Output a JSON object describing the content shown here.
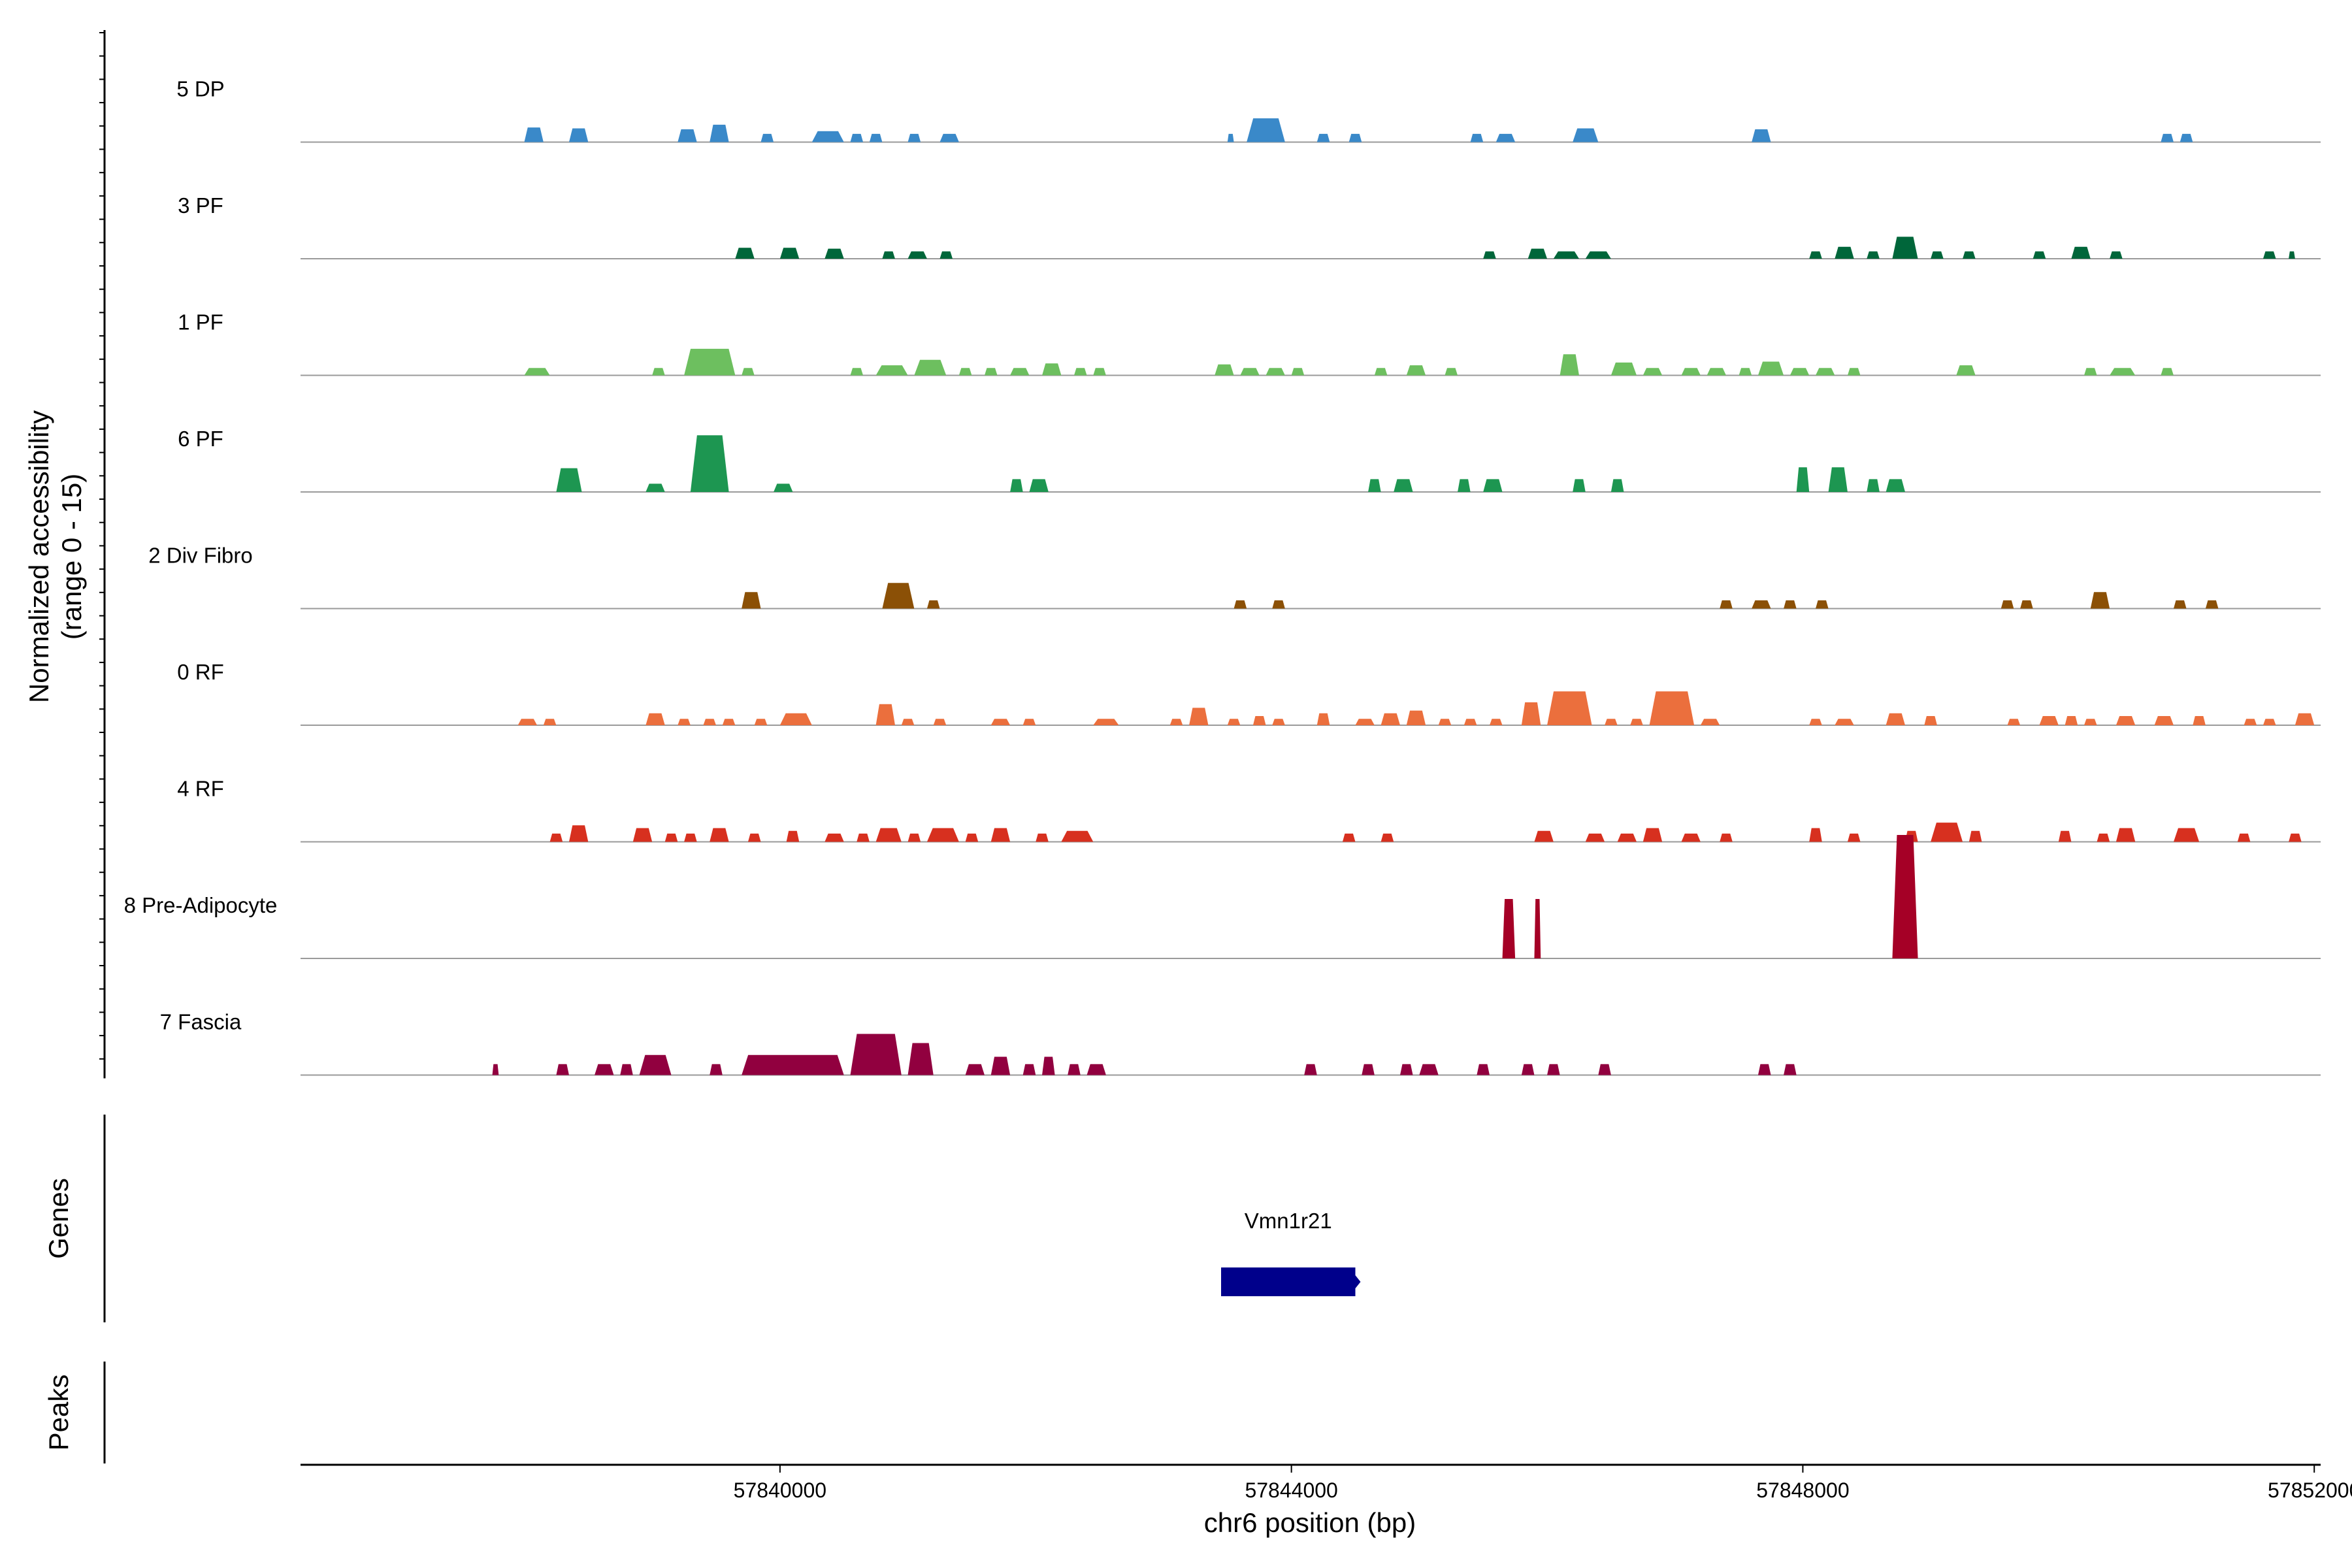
{
  "chart_data": {
    "type": "area",
    "title": "",
    "ylabel_main": [
      "Normalized accessibility",
      "(range 0 - 15)"
    ],
    "xlabel": "chr6 position (bp)",
    "xlim": [
      57836250,
      57852050
    ],
    "ylim": [
      0,
      15
    ],
    "x_ticks": [
      57840000,
      57844000,
      57848000,
      57852000
    ],
    "x_tick_labels": [
      "57840000",
      "57844000",
      "57848000",
      "57852000"
    ],
    "tracks": [
      {
        "name": "5 DP",
        "color": "#3A89C9",
        "peaks": [
          [
            57838000,
            57838150,
            1.6
          ],
          [
            57838350,
            57838500,
            1.5
          ],
          [
            57839200,
            57839350,
            1.4
          ],
          [
            57839450,
            57839600,
            1.9
          ],
          [
            57839850,
            57839950,
            0.9
          ],
          [
            57840250,
            57840500,
            1.2
          ],
          [
            57840550,
            57840650,
            0.9
          ],
          [
            57840700,
            57840800,
            0.9
          ],
          [
            57841000,
            57841100,
            0.9
          ],
          [
            57841250,
            57841400,
            0.9
          ],
          [
            57843500,
            57843550,
            0.9
          ],
          [
            57843650,
            57843950,
            2.6
          ],
          [
            57844200,
            57844300,
            0.9
          ],
          [
            57844450,
            57844550,
            0.9
          ],
          [
            57845400,
            57845500,
            0.9
          ],
          [
            57845600,
            57845750,
            0.9
          ],
          [
            57846200,
            57846400,
            1.5
          ],
          [
            57847600,
            57847750,
            1.4
          ],
          [
            57850800,
            57850900,
            0.9
          ],
          [
            57850950,
            57851050,
            0.9
          ]
        ]
      },
      {
        "name": "3 PF",
        "color": "#00663A",
        "peaks": [
          [
            57839650,
            57839800,
            1.2
          ],
          [
            57840000,
            57840150,
            1.2
          ],
          [
            57840350,
            57840500,
            1.1
          ],
          [
            57840800,
            57840900,
            0.8
          ],
          [
            57841000,
            57841150,
            0.8
          ],
          [
            57841250,
            57841350,
            0.8
          ],
          [
            57845500,
            57845600,
            0.8
          ],
          [
            57845850,
            57846000,
            1.1
          ],
          [
            57846050,
            57846250,
            0.8
          ],
          [
            57846300,
            57846500,
            0.8
          ],
          [
            57848050,
            57848150,
            0.8
          ],
          [
            57848250,
            57848400,
            1.3
          ],
          [
            57848500,
            57848600,
            0.8
          ],
          [
            57848700,
            57848900,
            2.4
          ],
          [
            57849000,
            57849100,
            0.8
          ],
          [
            57849250,
            57849350,
            0.8
          ],
          [
            57849800,
            57849900,
            0.8
          ],
          [
            57850100,
            57850250,
            1.3
          ],
          [
            57850400,
            57850500,
            0.8
          ],
          [
            57851600,
            57851700,
            0.8
          ],
          [
            57851800,
            57851850,
            0.8
          ]
        ]
      },
      {
        "name": "1 PF",
        "color": "#6DBF5F",
        "peaks": [
          [
            57838000,
            57838200,
            0.8
          ],
          [
            57839000,
            57839100,
            0.8
          ],
          [
            57839250,
            57839650,
            2.9
          ],
          [
            57839700,
            57839800,
            0.8
          ],
          [
            57840550,
            57840650,
            0.8
          ],
          [
            57840750,
            57841000,
            1.1
          ],
          [
            57841050,
            57841300,
            1.7
          ],
          [
            57841400,
            57841500,
            0.8
          ],
          [
            57841600,
            57841700,
            0.8
          ],
          [
            57841800,
            57841950,
            0.8
          ],
          [
            57842050,
            57842200,
            1.3
          ],
          [
            57842300,
            57842400,
            0.8
          ],
          [
            57842450,
            57842550,
            0.8
          ],
          [
            57843400,
            57843550,
            1.2
          ],
          [
            57843600,
            57843750,
            0.8
          ],
          [
            57843800,
            57843950,
            0.8
          ],
          [
            57844000,
            57844100,
            0.8
          ],
          [
            57844650,
            57844750,
            0.8
          ],
          [
            57844900,
            57845050,
            1.1
          ],
          [
            57845200,
            57845300,
            0.8
          ],
          [
            57846100,
            57846250,
            2.3
          ],
          [
            57846500,
            57846700,
            1.4
          ],
          [
            57846750,
            57846900,
            0.8
          ],
          [
            57847050,
            57847200,
            0.8
          ],
          [
            57847250,
            57847400,
            0.8
          ],
          [
            57847500,
            57847600,
            0.8
          ],
          [
            57847650,
            57847850,
            1.5
          ],
          [
            57847900,
            57848050,
            0.8
          ],
          [
            57848100,
            57848250,
            0.8
          ],
          [
            57848350,
            57848450,
            0.8
          ],
          [
            57849200,
            57849350,
            1.1
          ],
          [
            57850200,
            57850300,
            0.8
          ],
          [
            57850400,
            57850600,
            0.8
          ],
          [
            57850800,
            57850900,
            0.8
          ]
        ]
      },
      {
        "name": "6 PF",
        "color": "#1D9651",
        "peaks": [
          [
            57838250,
            57838450,
            2.6
          ],
          [
            57838950,
            57839100,
            0.9
          ],
          [
            57839300,
            57839600,
            6.2
          ],
          [
            57839950,
            57840100,
            0.9
          ],
          [
            57841800,
            57841900,
            1.4
          ],
          [
            57841950,
            57842100,
            1.4
          ],
          [
            57844600,
            57844700,
            1.4
          ],
          [
            57844800,
            57844950,
            1.4
          ],
          [
            57845300,
            57845400,
            1.4
          ],
          [
            57845500,
            57845650,
            1.4
          ],
          [
            57846200,
            57846300,
            1.4
          ],
          [
            57846500,
            57846600,
            1.4
          ],
          [
            57847950,
            57848050,
            2.7
          ],
          [
            57848200,
            57848350,
            2.7
          ],
          [
            57848500,
            57848600,
            1.4
          ],
          [
            57848650,
            57848800,
            1.4
          ]
        ]
      },
      {
        "name": "2 Div Fibro",
        "color": "#8B5006",
        "peaks": [
          [
            57839700,
            57839850,
            1.8
          ],
          [
            57840800,
            57841050,
            2.8
          ],
          [
            57841150,
            57841250,
            0.9
          ],
          [
            57843550,
            57843650,
            0.9
          ],
          [
            57843850,
            57843950,
            0.9
          ],
          [
            57847350,
            57847450,
            0.9
          ],
          [
            57847600,
            57847750,
            0.9
          ],
          [
            57847850,
            57847950,
            0.9
          ],
          [
            57848100,
            57848200,
            0.9
          ],
          [
            57849550,
            57849650,
            0.9
          ],
          [
            57849700,
            57849800,
            0.9
          ],
          [
            57850250,
            57850400,
            1.8
          ],
          [
            57850900,
            57851000,
            0.9
          ],
          [
            57851150,
            57851250,
            0.9
          ]
        ]
      },
      {
        "name": "0 RF",
        "color": "#EB6F3D",
        "peaks": [
          [
            57837950,
            57838100,
            0.7
          ],
          [
            57838150,
            57838250,
            0.7
          ],
          [
            57838950,
            57839100,
            1.3
          ],
          [
            57839200,
            57839300,
            0.7
          ],
          [
            57839400,
            57839500,
            0.7
          ],
          [
            57839550,
            57839650,
            0.7
          ],
          [
            57839800,
            57839900,
            0.7
          ],
          [
            57840000,
            57840250,
            1.3
          ],
          [
            57840750,
            57840900,
            2.3
          ],
          [
            57840950,
            57841050,
            0.7
          ],
          [
            57841200,
            57841300,
            0.7
          ],
          [
            57841650,
            57841800,
            0.7
          ],
          [
            57841900,
            57842000,
            0.7
          ],
          [
            57842450,
            57842650,
            0.7
          ],
          [
            57843050,
            57843150,
            0.7
          ],
          [
            57843200,
            57843350,
            1.9
          ],
          [
            57843500,
            57843600,
            0.7
          ],
          [
            57843700,
            57843800,
            1.0
          ],
          [
            57843850,
            57843950,
            0.7
          ],
          [
            57844200,
            57844300,
            1.3
          ],
          [
            57844500,
            57844650,
            0.7
          ],
          [
            57844700,
            57844850,
            1.3
          ],
          [
            57844900,
            57845050,
            1.6
          ],
          [
            57845150,
            57845250,
            0.7
          ],
          [
            57845350,
            57845450,
            0.7
          ],
          [
            57845550,
            57845650,
            0.7
          ],
          [
            57845800,
            57845950,
            2.5
          ],
          [
            57846000,
            57846350,
            3.7
          ],
          [
            57846450,
            57846550,
            0.7
          ],
          [
            57846650,
            57846750,
            0.7
          ],
          [
            57846800,
            57847150,
            3.7
          ],
          [
            57847200,
            57847350,
            0.7
          ],
          [
            57848050,
            57848150,
            0.7
          ],
          [
            57848250,
            57848400,
            0.7
          ],
          [
            57848650,
            57848800,
            1.3
          ],
          [
            57848950,
            57849050,
            1.0
          ],
          [
            57849600,
            57849700,
            0.7
          ],
          [
            57849850,
            57850000,
            1.0
          ],
          [
            57850050,
            57850150,
            1.0
          ],
          [
            57850200,
            57850300,
            0.7
          ],
          [
            57850450,
            57850600,
            1.0
          ],
          [
            57850750,
            57850900,
            1.0
          ],
          [
            57851050,
            57851150,
            1.0
          ],
          [
            57851450,
            57851550,
            0.7
          ],
          [
            57851600,
            57851700,
            0.7
          ],
          [
            57851850,
            57852000,
            1.3
          ]
        ]
      },
      {
        "name": "4 RF",
        "color": "#D7301F",
        "peaks": [
          [
            57838200,
            57838300,
            0.9
          ],
          [
            57838350,
            57838500,
            1.8
          ],
          [
            57838850,
            57839000,
            1.5
          ],
          [
            57839100,
            57839200,
            0.9
          ],
          [
            57839250,
            57839350,
            0.9
          ],
          [
            57839450,
            57839600,
            1.5
          ],
          [
            57839750,
            57839850,
            0.9
          ],
          [
            57840050,
            57840150,
            1.2
          ],
          [
            57840350,
            57840500,
            0.9
          ],
          [
            57840600,
            57840700,
            0.9
          ],
          [
            57840750,
            57840950,
            1.5
          ],
          [
            57841000,
            57841100,
            0.9
          ],
          [
            57841150,
            57841400,
            1.5
          ],
          [
            57841450,
            57841550,
            0.9
          ],
          [
            57841650,
            57841800,
            1.5
          ],
          [
            57842000,
            57842100,
            0.9
          ],
          [
            57842200,
            57842450,
            1.2
          ],
          [
            57844400,
            57844500,
            0.9
          ],
          [
            57844700,
            57844800,
            0.9
          ],
          [
            57845900,
            57846050,
            1.2
          ],
          [
            57846300,
            57846450,
            0.9
          ],
          [
            57846550,
            57846700,
            0.9
          ],
          [
            57846750,
            57846900,
            1.5
          ],
          [
            57847050,
            57847200,
            0.9
          ],
          [
            57847350,
            57847450,
            0.9
          ],
          [
            57848050,
            57848150,
            1.5
          ],
          [
            57848350,
            57848450,
            0.9
          ],
          [
            57848800,
            57848900,
            1.2
          ],
          [
            57849000,
            57849250,
            2.1
          ],
          [
            57849300,
            57849400,
            1.2
          ],
          [
            57850000,
            57850100,
            1.2
          ],
          [
            57850300,
            57850400,
            0.9
          ],
          [
            57850450,
            57850600,
            1.5
          ],
          [
            57850900,
            57851100,
            1.5
          ],
          [
            57851400,
            57851500,
            0.9
          ],
          [
            57851800,
            57851900,
            0.9
          ]
        ]
      },
      {
        "name": "8 Pre-Adipocyte",
        "color": "#A50026",
        "peaks": [
          [
            57845650,
            57845750,
            6.5
          ],
          [
            57845900,
            57845950,
            6.5
          ],
          [
            57848700,
            57848900,
            13.5
          ]
        ]
      },
      {
        "name": "7 Fascia",
        "color": "#91003F",
        "peaks": [
          [
            57837750,
            57837800,
            1.2
          ],
          [
            57838250,
            57838350,
            1.2
          ],
          [
            57838550,
            57838700,
            1.2
          ],
          [
            57838750,
            57838850,
            1.2
          ],
          [
            57838900,
            57839150,
            2.2
          ],
          [
            57839450,
            57839550,
            1.2
          ],
          [
            57839700,
            57840500,
            2.2
          ],
          [
            57840550,
            57840950,
            4.5
          ],
          [
            57841000,
            57841200,
            3.5
          ],
          [
            57841450,
            57841600,
            1.2
          ],
          [
            57841650,
            57841800,
            2.0
          ],
          [
            57841900,
            57842000,
            1.2
          ],
          [
            57842050,
            57842150,
            2.0
          ],
          [
            57842250,
            57842350,
            1.2
          ],
          [
            57842400,
            57842550,
            1.2
          ],
          [
            57844100,
            57844200,
            1.2
          ],
          [
            57844550,
            57844650,
            1.2
          ],
          [
            57844850,
            57844950,
            1.2
          ],
          [
            57845000,
            57845150,
            1.2
          ],
          [
            57845450,
            57845550,
            1.2
          ],
          [
            57845800,
            57845900,
            1.2
          ],
          [
            57846000,
            57846100,
            1.2
          ],
          [
            57846400,
            57846500,
            1.2
          ],
          [
            57847650,
            57847750,
            1.2
          ],
          [
            57847850,
            57847950,
            1.2
          ]
        ]
      }
    ],
    "genes": {
      "ylabel": "Genes",
      "items": [
        {
          "name": "Vmn1r21",
          "start": 57843450,
          "end": 57844500,
          "color": "#00008B"
        }
      ]
    },
    "peaks_panel": {
      "ylabel": "Peaks",
      "items": []
    }
  }
}
